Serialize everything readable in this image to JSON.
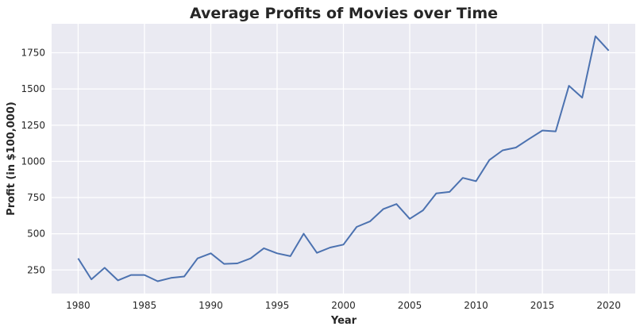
{
  "chart_data": {
    "type": "line",
    "title": "Average Profits of Movies over Time",
    "xlabel": "Year",
    "ylabel": "Profit (in $100,000)",
    "xlim": [
      1978,
      2022
    ],
    "ylim": [
      87,
      1950
    ],
    "xticks": [
      1980,
      1985,
      1990,
      1995,
      2000,
      2005,
      2010,
      2015,
      2020
    ],
    "yticks": [
      250,
      500,
      750,
      1000,
      1250,
      1500,
      1750
    ],
    "grid": true,
    "background_color": "#EAEAF2",
    "line_color": "#4C72B0",
    "x": [
      1980,
      1981,
      1982,
      1983,
      1984,
      1985,
      1986,
      1987,
      1988,
      1989,
      1990,
      1991,
      1992,
      1993,
      1994,
      1995,
      1996,
      1997,
      1998,
      1999,
      2000,
      2001,
      2002,
      2003,
      2004,
      2005,
      2006,
      2007,
      2008,
      2009,
      2010,
      2011,
      2012,
      2013,
      2014,
      2015,
      2016,
      2017,
      2018,
      2019,
      2020
    ],
    "y": [
      330,
      185,
      265,
      178,
      215,
      215,
      172,
      195,
      205,
      330,
      365,
      292,
      295,
      330,
      400,
      365,
      345,
      500,
      368,
      405,
      425,
      547,
      585,
      670,
      705,
      603,
      662,
      779,
      789,
      886,
      863,
      1009,
      1076,
      1095,
      1155,
      1213,
      1207,
      1522,
      1440,
      1864,
      1765
    ]
  }
}
